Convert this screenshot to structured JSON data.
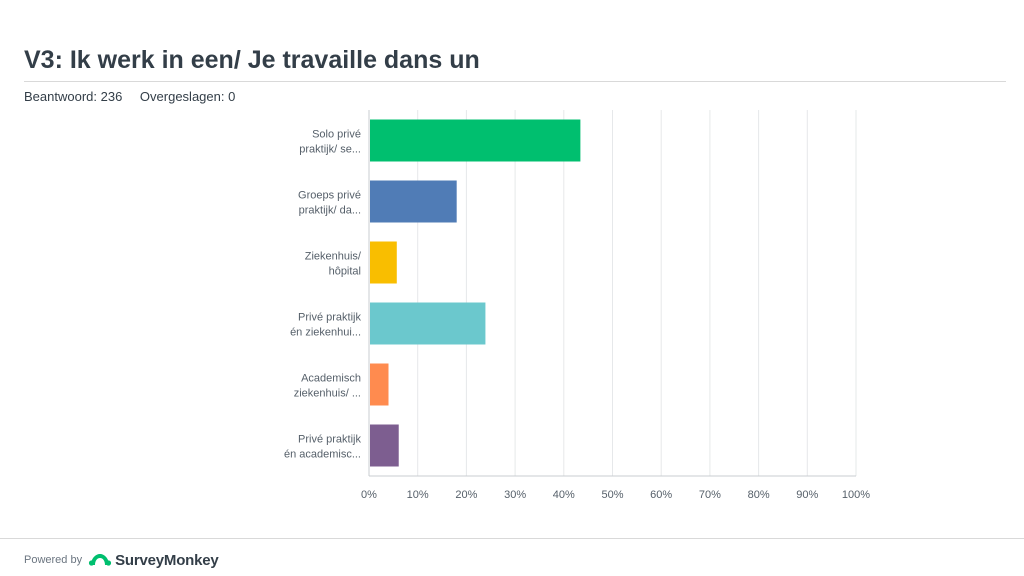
{
  "header": {
    "title": "V3: Ik werk in een/ Je travaille dans un",
    "answered": "Beantwoord: 236",
    "skipped": "Overgeslagen: 0"
  },
  "chart_data": {
    "type": "bar",
    "orientation": "horizontal",
    "categories": [
      [
        "Solo privé",
        "praktijk/ se..."
      ],
      [
        "Groeps privé",
        "praktijk/ da..."
      ],
      [
        "Ziekenhuis/",
        "hôpital"
      ],
      [
        "Privé praktijk",
        "én ziekenhui..."
      ],
      [
        "Academisch",
        "ziekenhuis/ ..."
      ],
      [
        "Privé praktijk",
        "én academisc..."
      ]
    ],
    "values": [
      43.2,
      17.8,
      5.5,
      23.7,
      3.8,
      5.9
    ],
    "colors": [
      "#00bf6f",
      "#507cb6",
      "#f9be00",
      "#6bc8cd",
      "#ff8b4f",
      "#7d5e90"
    ],
    "xlim": [
      0,
      100
    ],
    "xticks": [
      "0%",
      "10%",
      "20%",
      "30%",
      "40%",
      "50%",
      "60%",
      "70%",
      "80%",
      "90%",
      "100%"
    ],
    "grid": true
  },
  "footer": {
    "powered_by": "Powered by",
    "brand": "SurveyMonkey",
    "brand_icon": "surveymonkey-logo-icon",
    "brand_color": "#00bf6f"
  }
}
